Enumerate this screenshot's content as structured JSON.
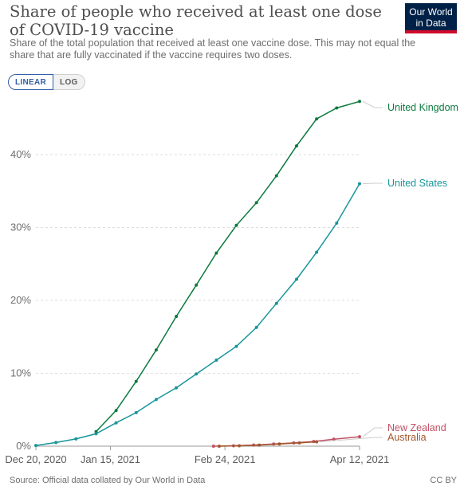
{
  "header": {
    "title": "Share of people who received at least one dose of COVID-19 vaccine",
    "subtitle": "Share of the total population that received at least one vaccine dose. This may not equal the share that are fully vaccinated if the vaccine requires two doses.",
    "logo_line1": "Our World",
    "logo_line2": "in Data"
  },
  "controls": {
    "linear_label": "LINEAR",
    "log_label": "LOG",
    "selected": "LINEAR"
  },
  "footer": {
    "source": "Source: Official data collated by Our World in Data",
    "license": "CC BY"
  },
  "chart_data": {
    "type": "line",
    "title": "Share of people who received at least one dose of COVID-19 vaccine",
    "y_ticks": [
      "0%",
      "10%",
      "20%",
      "30%",
      "40%"
    ],
    "y_tick_values": [
      0,
      10,
      20,
      30,
      40
    ],
    "x_ticks": [
      "Dec 20, 2020",
      "Jan 15, 2021",
      "Feb 24, 2021",
      "Apr 12, 2021"
    ],
    "x_tick_dates": [
      "2020-12-20",
      "2021-01-15",
      "2021-02-24",
      "2021-04-12"
    ],
    "xlim": [
      "2020-12-20",
      "2021-04-12"
    ],
    "ylim": [
      0,
      47
    ],
    "grid": "horizontal dashed",
    "legend": "labels at line ends (right)",
    "series": [
      {
        "name": "United Kingdom",
        "color": "#0b7a3e",
        "dates": [
          "2021-01-10",
          "2021-01-17",
          "2021-01-24",
          "2021-01-31",
          "2021-02-07",
          "2021-02-14",
          "2021-02-21",
          "2021-02-28",
          "2021-03-07",
          "2021-03-14",
          "2021-03-21",
          "2021-03-28",
          "2021-04-04",
          "2021-04-12"
        ],
        "values": [
          2.0,
          4.9,
          8.9,
          13.2,
          17.8,
          22.1,
          26.5,
          30.3,
          33.4,
          37.1,
          41.2,
          44.9,
          46.4,
          47.3
        ]
      },
      {
        "name": "United States",
        "color": "#18959a",
        "dates": [
          "2020-12-20",
          "2020-12-27",
          "2021-01-03",
          "2021-01-10",
          "2021-01-17",
          "2021-01-24",
          "2021-01-31",
          "2021-02-07",
          "2021-02-14",
          "2021-02-21",
          "2021-02-28",
          "2021-03-07",
          "2021-03-14",
          "2021-03-21",
          "2021-03-28",
          "2021-04-04",
          "2021-04-12"
        ],
        "values": [
          0.1,
          0.5,
          1.0,
          1.7,
          3.2,
          4.6,
          6.4,
          8.0,
          9.9,
          11.8,
          13.7,
          16.3,
          19.6,
          22.9,
          26.6,
          30.6,
          36.0
        ]
      },
      {
        "name": "New Zealand",
        "color": "#c15065",
        "dates": [
          "2021-02-20",
          "2021-02-27",
          "2021-03-06",
          "2021-03-13",
          "2021-03-20",
          "2021-03-27",
          "2021-04-03",
          "2021-04-12"
        ],
        "values": [
          0.0,
          0.05,
          0.15,
          0.3,
          0.45,
          0.65,
          0.95,
          1.3
        ]
      },
      {
        "name": "Australia",
        "color": "#a2562c",
        "dates": [
          "2021-02-22",
          "2021-03-01",
          "2021-03-08",
          "2021-03-15",
          "2021-03-22",
          "2021-03-28"
        ],
        "values": [
          0.0,
          0.05,
          0.15,
          0.3,
          0.45,
          0.6
        ]
      }
    ]
  }
}
